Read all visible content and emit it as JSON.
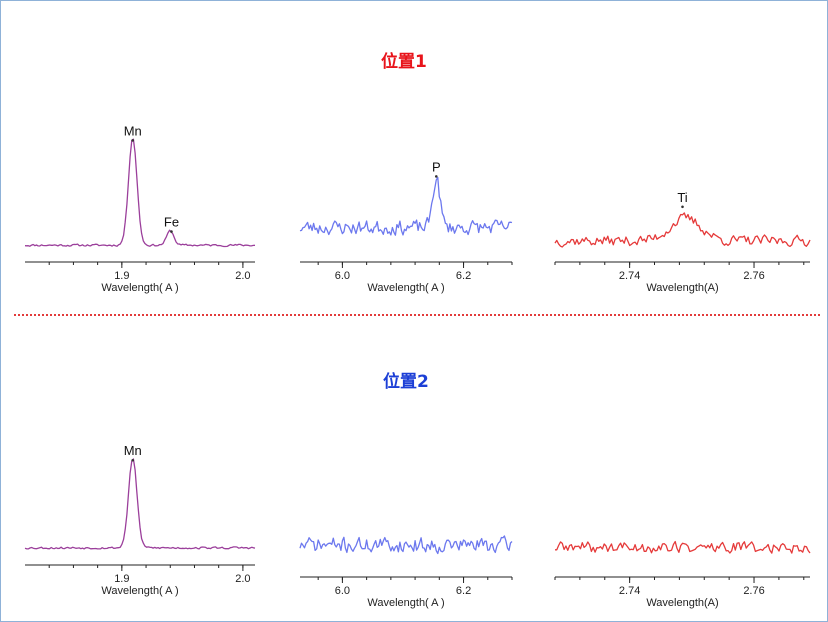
{
  "colors": {
    "title_1": "#e8141b",
    "title_2": "#1c3fd6",
    "divider": "#e23b3b",
    "spectrum_mn": "#9b3f9b",
    "spectrum_p": "#6c78ee",
    "spectrum_ti": "#e53a3a"
  },
  "sections": [
    {
      "title": "位置1"
    },
    {
      "title": "位置2"
    }
  ],
  "chart_data": [
    {
      "type": "line",
      "section": "位置1",
      "xlabel": "Wavelength( A )",
      "xlim": [
        1.82,
        2.01
      ],
      "ylim": [
        0,
        1
      ],
      "ticks": [
        {
          "v": 1.9,
          "label": "1.9"
        },
        {
          "v": 2.0,
          "label": "2.0"
        }
      ],
      "series": [
        {
          "color": "#9b3f9b",
          "baseline": 0.04,
          "noise": 0.012,
          "seed": 11,
          "peaks": [
            [
              1.909,
              0.9,
              0.0035
            ],
            [
              1.94,
              0.12,
              0.003
            ]
          ]
        }
      ],
      "annotations": [
        {
          "x": 1.909,
          "y": 0.93,
          "label": "Mn"
        },
        {
          "x": 1.941,
          "y": 0.17,
          "label": "Fe"
        }
      ]
    },
    {
      "type": "line",
      "section": "位置1",
      "xlabel": "Wavelength( A )",
      "xlim": [
        5.93,
        6.28
      ],
      "ylim": [
        0,
        1
      ],
      "ticks": [
        {
          "v": 6.0,
          "label": "6.0"
        },
        {
          "v": 6.2,
          "label": "6.2"
        }
      ],
      "series": [
        {
          "color": "#6c78ee",
          "baseline": 0.25,
          "noise": 0.11,
          "seed": 23,
          "peaks": [
            [
              6.155,
              0.55,
              0.006
            ]
          ]
        }
      ],
      "annotations": [
        {
          "x": 6.155,
          "y": 0.84,
          "label": "P"
        }
      ]
    },
    {
      "type": "line",
      "section": "位置1",
      "xlabel": "Wavelength(A)",
      "xlim": [
        2.728,
        2.769
      ],
      "ylim": [
        0,
        1
      ],
      "ticks": [
        {
          "v": 2.74,
          "label": "2.74"
        },
        {
          "v": 2.76,
          "label": "2.76"
        }
      ],
      "series": [
        {
          "color": "#e53a3a",
          "baseline": 0.24,
          "noise": 0.09,
          "seed": 37,
          "peaks": [
            [
              2.749,
              0.28,
              0.0025
            ]
          ]
        }
      ],
      "annotations": [
        {
          "x": 2.7485,
          "y": 0.69,
          "label": "Ti"
        }
      ]
    },
    {
      "type": "line",
      "section": "位置2",
      "xlabel": "Wavelength( A )",
      "xlim": [
        1.82,
        2.01
      ],
      "ylim": [
        0,
        1
      ],
      "ticks": [
        {
          "v": 1.9,
          "label": "1.9"
        },
        {
          "v": 2.0,
          "label": "2.0"
        }
      ],
      "series": [
        {
          "color": "#9b3f9b",
          "baseline": 0.05,
          "noise": 0.014,
          "seed": 53,
          "peaks": [
            [
              1.909,
              0.87,
              0.0035
            ]
          ]
        }
      ],
      "annotations": [
        {
          "x": 1.909,
          "y": 0.92,
          "label": "Mn"
        }
      ]
    },
    {
      "type": "line",
      "section": "位置2",
      "xlabel": "Wavelength( A )",
      "xlim": [
        5.93,
        6.28
      ],
      "ylim": [
        0,
        1
      ],
      "ticks": [
        {
          "v": 6.0,
          "label": "6.0"
        },
        {
          "v": 6.2,
          "label": "6.2"
        }
      ],
      "series": [
        {
          "color": "#6c78ee",
          "baseline": 0.25,
          "noise": 0.13,
          "seed": 71,
          "peaks": []
        }
      ],
      "annotations": []
    },
    {
      "type": "line",
      "section": "位置2",
      "xlabel": "Wavelength(A)",
      "xlim": [
        2.728,
        2.769
      ],
      "ylim": [
        0,
        1
      ],
      "ticks": [
        {
          "v": 2.74,
          "label": "2.74"
        },
        {
          "v": 2.76,
          "label": "2.76"
        }
      ],
      "series": [
        {
          "color": "#e53a3a",
          "baseline": 0.22,
          "noise": 0.1,
          "seed": 89,
          "peaks": []
        }
      ],
      "annotations": []
    }
  ]
}
